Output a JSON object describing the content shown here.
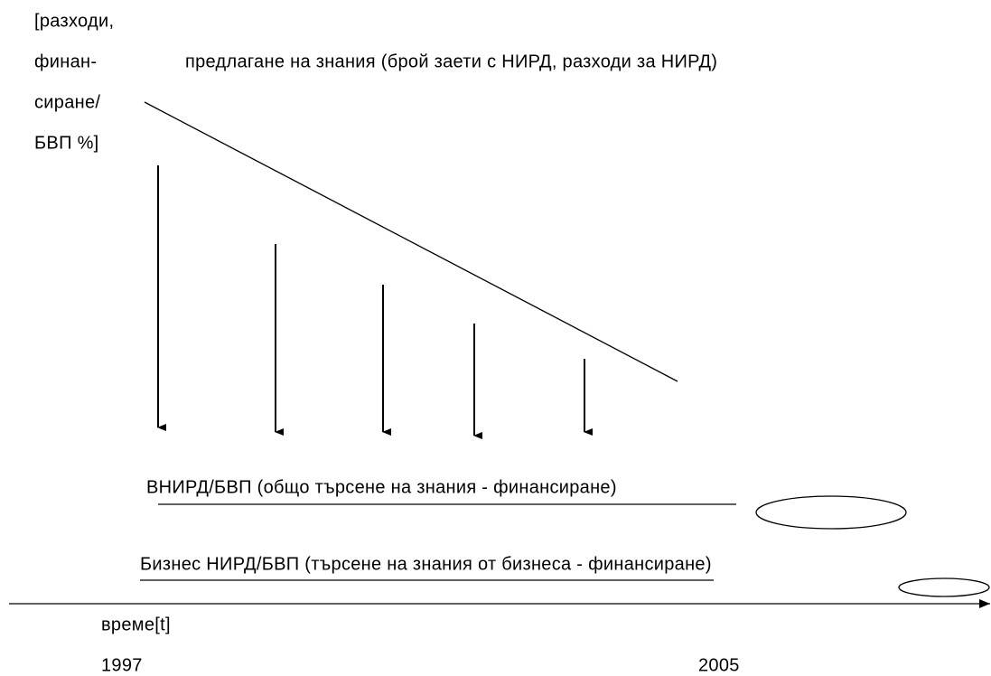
{
  "y_axis_label": [
    "[разходи,",
    "финан-",
    "сиране/",
    "БВП %]"
  ],
  "supply_label": "предлагане на знания (брой заети с НИРД, разходи за НИРД)",
  "total_demand_label": "ВНИРД/БВП (общо търсене на знания - финансиране)",
  "business_demand_label": "Бизнес НИРД/БВП (търсене на знания от бизнеса - финансиране)",
  "x_axis_label": "време[t]",
  "x_start": "1997",
  "x_end": "2005"
}
